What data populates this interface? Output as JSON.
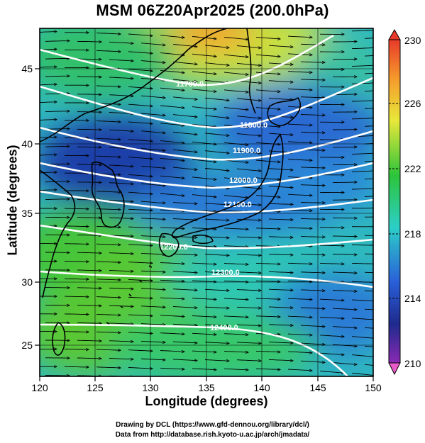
{
  "header": {
    "title": "MSM 06Z20Apr2025 (200.0hPa)"
  },
  "axes": {
    "xlabel": "Longitude (degrees)",
    "ylabel": "Latitude  (degrees)",
    "x_ticks": [
      "120",
      "125",
      "130",
      "135",
      "140",
      "145",
      "150"
    ],
    "y_ticks": [
      "25",
      "30",
      "35",
      "40",
      "45"
    ]
  },
  "colorbar": {
    "ticks": [
      "230",
      "226",
      "222",
      "218",
      "214",
      "210"
    ],
    "colors": {
      "max": "#e83a2a",
      "orange": "#f59a2c",
      "yellow": "#e8e83a",
      "green": "#2cc43a",
      "cyan": "#2ccfc8",
      "blue": "#2a5fd8",
      "navy": "#1e2a8c",
      "purple": "#8a2ab4",
      "min": "#e85ac8"
    }
  },
  "contours": {
    "labels": [
      "11700.0",
      "11800.0",
      "11900.0",
      "12000.0",
      "12100.0",
      "12200.0",
      "12300.0",
      "12400.0"
    ]
  },
  "credits": {
    "line1": "Drawing by DCL (https://www.gfd-dennou.org/library/dcl/)",
    "line2": "Data from http://database.rish.kyoto-u.ac.jp/arch/jmadata/"
  },
  "chart_data": {
    "type": "heatmap",
    "title": "MSM 06Z20Apr2025 (200.0hPa)",
    "xlabel": "Longitude (degrees)",
    "ylabel": "Latitude  (degrees)",
    "xlim": [
      120,
      150
    ],
    "ylim": [
      22.4,
      47.6
    ],
    "colorbar_range": [
      210,
      230
    ],
    "colorbar_ticks": [
      210,
      214,
      218,
      222,
      226,
      230
    ],
    "contour_levels": [
      11700,
      11800,
      11900,
      12000,
      12100,
      12200,
      12300,
      12400
    ],
    "overlay": "wind streamlines (westerly jet)",
    "grid": true
  }
}
